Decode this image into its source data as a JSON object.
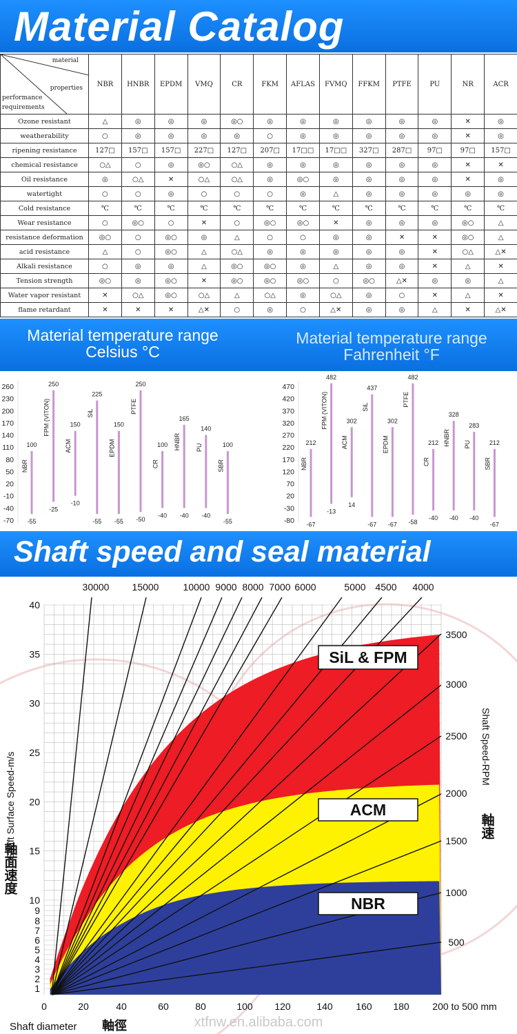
{
  "header_title": "Material Catalog",
  "catalog": {
    "corner_labels": [
      "material",
      "properties",
      "performance",
      "requirements"
    ],
    "materials": [
      "NBR",
      "HNBR",
      "EPDM",
      "VMQ",
      "CR",
      "FKM",
      "AFLAS",
      "FVMQ",
      "FFKM",
      "PTFE",
      "PU",
      "NR",
      "ACR"
    ],
    "rows": [
      {
        "label": "Ozone resistant",
        "cells": [
          "△",
          "◎",
          "◎",
          "◎",
          "◎○",
          "◎",
          "◎",
          "◎",
          "◎",
          "◎",
          "◎",
          "✕",
          "◎"
        ]
      },
      {
        "label": "weatherability",
        "cells": [
          "○",
          "◎",
          "◎",
          "◎",
          "◎",
          "○",
          "◎",
          "◎",
          "◎",
          "◎",
          "◎",
          "✕",
          "◎"
        ]
      },
      {
        "label": "ripening resistance",
        "cells": [
          "127□",
          "157□",
          "157□",
          "227□",
          "127□",
          "207□",
          "17□□",
          "17□□",
          "327□",
          "287□",
          "97□",
          "97□",
          "157□"
        ]
      },
      {
        "label": "chemical resistance",
        "cells": [
          "○△",
          "○",
          "◎",
          "◎○",
          "○△",
          "◎",
          "◎",
          "◎",
          "◎",
          "◎",
          "◎",
          "✕",
          "✕"
        ]
      },
      {
        "label": "Oil resistance",
        "cells": [
          "◎",
          "○△",
          "✕",
          "○△",
          "○△",
          "◎",
          "◎○",
          "◎",
          "◎",
          "◎",
          "◎",
          "✕",
          "◎"
        ]
      },
      {
        "label": "watertight",
        "cells": [
          "○",
          "○",
          "◎",
          "○",
          "○",
          "○",
          "◎",
          "△",
          "◎",
          "◎",
          "◎",
          "◎",
          "◎"
        ]
      },
      {
        "label": "Cold resistance",
        "cells": [
          "℃",
          "℃",
          "℃",
          "℃",
          "℃",
          "℃",
          "℃",
          "℃",
          "℃",
          "℃",
          "℃",
          "℃",
          "℃"
        ]
      },
      {
        "label": "Wear resistance",
        "cells": [
          "○",
          "◎○",
          "○",
          "✕",
          "○",
          "◎○",
          "◎○",
          "✕",
          "◎",
          "◎",
          "◎",
          "◎○",
          "△"
        ]
      },
      {
        "label": "resistance deformation",
        "cells": [
          "◎○",
          "○",
          "◎○",
          "◎",
          "△",
          "○",
          "○",
          "◎",
          "◎",
          "✕",
          "✕",
          "◎○",
          "△"
        ]
      },
      {
        "label": "acid resistance",
        "cells": [
          "△",
          "○",
          "◎○",
          "△",
          "○△",
          "◎",
          "◎",
          "◎",
          "◎",
          "◎",
          "✕",
          "○△",
          "△✕"
        ]
      },
      {
        "label": "Alkali resistance",
        "cells": [
          "○",
          "◎",
          "◎",
          "△",
          "◎○",
          "◎○",
          "◎",
          "△",
          "◎",
          "◎",
          "✕",
          "△",
          "✕"
        ]
      },
      {
        "label": "Tension strength",
        "cells": [
          "◎○",
          "◎",
          "◎○",
          "✕",
          "◎○",
          "◎○",
          "◎○",
          "○",
          "◎○",
          "△✕",
          "◎",
          "◎",
          "△"
        ]
      },
      {
        "label": "Water vapor resistant",
        "cells": [
          "✕",
          "○△",
          "◎○",
          "○△",
          "△",
          "○△",
          "◎",
          "○△",
          "◎",
          "○",
          "✕",
          "△",
          "✕"
        ]
      },
      {
        "label": "flame retardant",
        "cells": [
          "✕",
          "✕",
          "✕",
          "△✕",
          "○",
          "◎",
          "○",
          "△✕",
          "◎",
          "◎",
          "△",
          "✕",
          "△✕"
        ]
      }
    ]
  },
  "temp_section": {
    "celsius_line1": "Material temperature range",
    "celsius_line2": "Celsius °C",
    "fahrenheit_line1": "Material temperature range",
    "fahrenheit_line2": "Fahrenheit °F"
  },
  "chart_data": [
    {
      "type": "bar",
      "title": "Material temperature range Celsius °C",
      "y_ticks": [
        260,
        230,
        200,
        170,
        140,
        110,
        80,
        50,
        20,
        -10,
        -40,
        -70
      ],
      "ylim": [
        -70,
        260
      ],
      "materials": [
        {
          "name": "NBR",
          "high": 100,
          "low": -55
        },
        {
          "name": "FPM (VITON)",
          "high": 250,
          "low": -25
        },
        {
          "name": "ACM",
          "high": 150,
          "low": -10
        },
        {
          "name": "SiL",
          "high": 225,
          "low": -55
        },
        {
          "name": "EPDM",
          "high": 150,
          "low": -55
        },
        {
          "name": "PTFE",
          "high": 250,
          "low": -50
        },
        {
          "name": "CR",
          "high": 100,
          "low": -40
        },
        {
          "name": "HNBR",
          "high": 165,
          "low": -40
        },
        {
          "name": "PU",
          "high": 140,
          "low": -40
        },
        {
          "name": "SBR",
          "high": 100,
          "low": -55
        }
      ]
    },
    {
      "type": "bar",
      "title": "Material temperature range Fahrenheit °F",
      "y_ticks": [
        470,
        420,
        370,
        320,
        270,
        220,
        170,
        120,
        70,
        20,
        -30,
        -80
      ],
      "ylim": [
        -80,
        470
      ],
      "materials": [
        {
          "name": "NBR",
          "high": 212,
          "low": -67
        },
        {
          "name": "FPM (VITON)",
          "high": 482,
          "low": -13
        },
        {
          "name": "ACM",
          "high": 302,
          "low": 14
        },
        {
          "name": "SiL",
          "high": 437,
          "low": -67
        },
        {
          "name": "EPDM",
          "high": 302,
          "low": -67
        },
        {
          "name": "PTFE",
          "high": 482,
          "low": -58
        },
        {
          "name": "CR",
          "high": 212,
          "low": -40
        },
        {
          "name": "HNBR",
          "high": 328,
          "low": -40
        },
        {
          "name": "PU",
          "high": 283,
          "low": -40
        },
        {
          "name": "SBR",
          "high": 212,
          "low": -67
        }
      ]
    },
    {
      "type": "area",
      "title": "Shaft speed and seal material",
      "xlabel": "Shaft diameter",
      "xlabel_cn": "軸徑",
      "ylabel": "Shaft Surface Speed-m/s",
      "ylabel_cn": "軸面速度",
      "y2label": "Shaft Speed-RPM",
      "y2label_cn": "軸速",
      "x_ticks": [
        "0",
        "20",
        "40",
        "60",
        "80",
        "100",
        "120",
        "140",
        "160",
        "180",
        "200 to 500 mm"
      ],
      "y_ticks": [
        1,
        2,
        3,
        4,
        5,
        6,
        7,
        8,
        9,
        10,
        15,
        20,
        25,
        30,
        35,
        40
      ],
      "top_rpm_labels": [
        "30000",
        "15000",
        "10000",
        "9000",
        "8000",
        "7000",
        "6000",
        "5000",
        "4500",
        "4000"
      ],
      "right_rpm_labels": [
        "3500",
        "3000",
        "2500",
        "2000",
        "1500",
        "1000",
        "500"
      ],
      "regions": [
        {
          "name": "SiL & FPM",
          "color": "#ee1c24",
          "max_speed": 38
        },
        {
          "name": "ACM",
          "color": "#fff200",
          "max_speed": 22
        },
        {
          "name": "NBR",
          "color": "#2e3f9b",
          "max_speed": 12
        }
      ]
    }
  ],
  "shaft_section_title": "Shaft speed and seal material",
  "watermark": "xtfnw.en.alibaba.com"
}
